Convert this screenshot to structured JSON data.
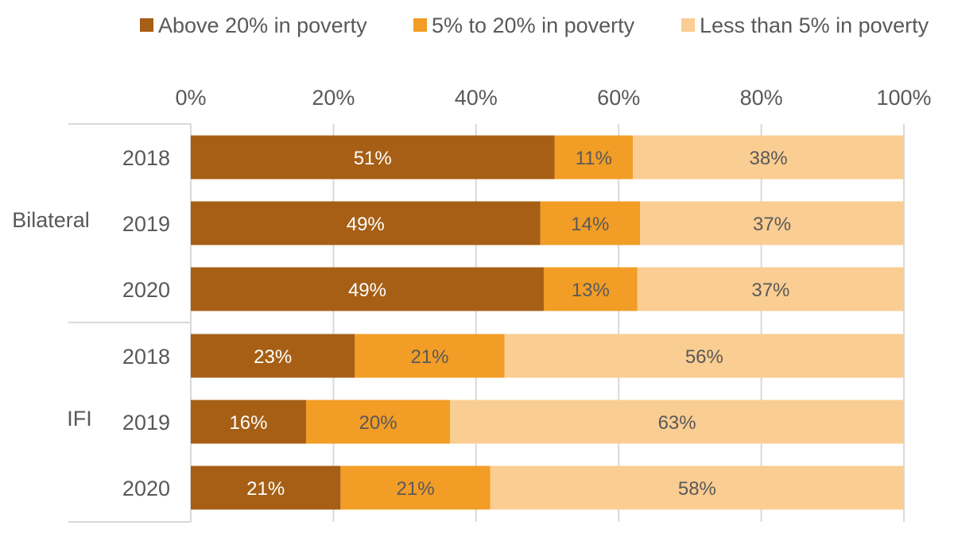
{
  "chart_data": {
    "type": "bar",
    "orientation": "horizontal",
    "stacked": true,
    "percent_stacked": true,
    "legend_position": "top",
    "grid": true,
    "xlim": [
      0,
      100
    ],
    "x_ticks": [
      "0%",
      "20%",
      "40%",
      "60%",
      "80%",
      "100%"
    ],
    "groups": [
      {
        "name": "Bilateral",
        "categories": [
          "2018",
          "2019",
          "2020"
        ]
      },
      {
        "name": "IFI",
        "categories": [
          "2018",
          "2019",
          "2020"
        ]
      }
    ],
    "series": [
      {
        "name": "Above 20% in poverty",
        "color": "#A65F15",
        "label_color": "#FFFFFF",
        "values": [
          51,
          49,
          49,
          23,
          16,
          21
        ],
        "labels": [
          "51%",
          "49%",
          "49%",
          "23%",
          "16%",
          "21%"
        ]
      },
      {
        "name": "5% to 20% in poverty",
        "color": "#F29D26",
        "label_color": "#595959",
        "values": [
          11,
          14,
          13,
          21,
          20,
          21
        ],
        "labels": [
          "11%",
          "14%",
          "13%",
          "21%",
          "20%",
          "21%"
        ]
      },
      {
        "name": "Less than 5% in poverty",
        "color": "#FACD92",
        "label_color": "#595959",
        "values": [
          38,
          37,
          37,
          56,
          63,
          58
        ],
        "labels": [
          "38%",
          "37%",
          "37%",
          "56%",
          "63%",
          "58%"
        ]
      }
    ]
  }
}
